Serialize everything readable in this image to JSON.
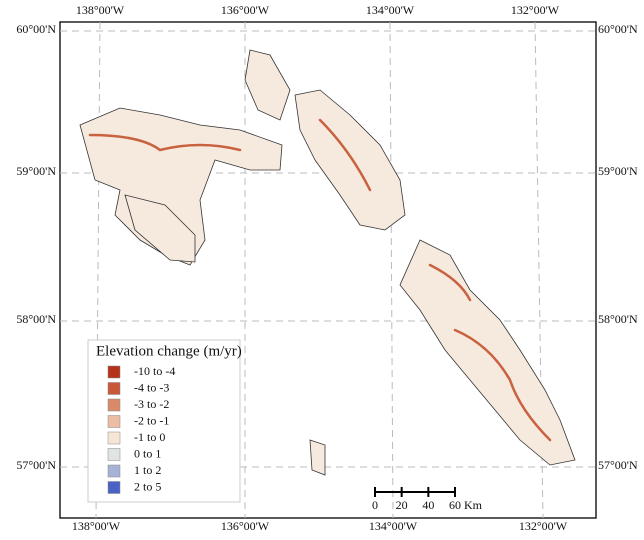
{
  "map": {
    "graticule": {
      "top": [
        "138°00'W",
        "136°00'W",
        "134°00'W",
        "132°00'W"
      ],
      "bottom": [
        "138°00'W",
        "136°00'W",
        "134°00'W",
        "132°00'W"
      ],
      "left": [
        "60°00'N",
        "59°00'N",
        "58°00'N",
        "57°00'N"
      ],
      "right": [
        "60°00'N",
        "59°00'N",
        "58°00'N",
        "57°00'N"
      ]
    },
    "legend": {
      "title": "Elevation change (m/yr)",
      "items": [
        {
          "label": "-10 to -4",
          "color": "#b5331a"
        },
        {
          "label": "-4 to -3",
          "color": "#c9573a"
        },
        {
          "label": "-3 to -2",
          "color": "#d98a68"
        },
        {
          "label": "-2 to -1",
          "color": "#ecbca3"
        },
        {
          "label": "-1 to 0",
          "color": "#f7e6d6"
        },
        {
          "label": "0 to 1",
          "color": "#e1e5e2"
        },
        {
          "label": "1 to 2",
          "color": "#a6b3d6"
        },
        {
          "label": "2 to 5",
          "color": "#4a62c4"
        }
      ]
    },
    "scale_bar": {
      "ticks": [
        0,
        20,
        40,
        60
      ],
      "unit": "Km"
    }
  }
}
